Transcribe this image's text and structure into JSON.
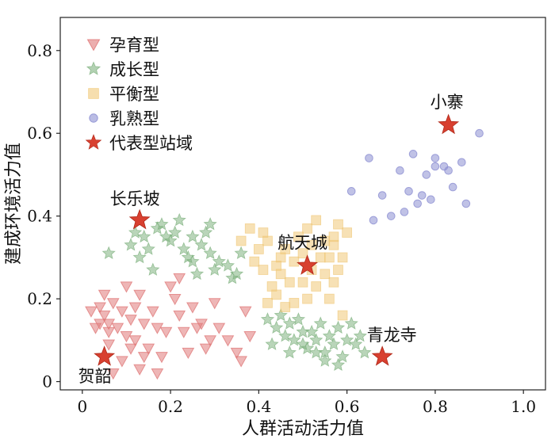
{
  "chart_data": {
    "type": "scatter",
    "xlabel": "人群活动活力值",
    "ylabel": "建成环境活力值",
    "xlim": [
      -0.05,
      1.05
    ],
    "ylim": [
      -0.02,
      0.88
    ],
    "xticks": [
      {
        "value": 0.0,
        "label": "0"
      },
      {
        "value": 0.2,
        "label": "0.2"
      },
      {
        "value": 0.4,
        "label": "0.4"
      },
      {
        "value": 0.6,
        "label": "0.6"
      },
      {
        "value": 0.8,
        "label": "0.8"
      },
      {
        "value": 1.0,
        "label": "1.0"
      }
    ],
    "yticks": [
      {
        "value": 0.0,
        "label": "0"
      },
      {
        "value": 0.2,
        "label": "0.2"
      },
      {
        "value": 0.4,
        "label": "0.4"
      },
      {
        "value": 0.6,
        "label": "0.6"
      },
      {
        "value": 0.8,
        "label": "0.8"
      }
    ],
    "grid": false,
    "legend_position": "top-left",
    "series": [
      {
        "name": "孕育型",
        "marker": "triangle-down",
        "color": "#e07a7a",
        "points": [
          [
            0.02,
            0.17
          ],
          [
            0.04,
            0.18
          ],
          [
            0.05,
            0.16
          ],
          [
            0.06,
            0.14
          ],
          [
            0.07,
            0.19
          ],
          [
            0.04,
            0.14
          ],
          [
            0.06,
            0.12
          ],
          [
            0.03,
            0.13
          ],
          [
            0.05,
            0.21
          ],
          [
            0.08,
            0.13
          ],
          [
            0.09,
            0.17
          ],
          [
            0.1,
            0.11
          ],
          [
            0.11,
            0.15
          ],
          [
            0.12,
            0.18
          ],
          [
            0.13,
            0.21
          ],
          [
            0.12,
            0.1
          ],
          [
            0.14,
            0.14
          ],
          [
            0.15,
            0.08
          ],
          [
            0.16,
            0.17
          ],
          [
            0.17,
            0.13
          ],
          [
            0.19,
            0.12
          ],
          [
            0.2,
            0.23
          ],
          [
            0.21,
            0.2
          ],
          [
            0.22,
            0.16
          ],
          [
            0.23,
            0.12
          ],
          [
            0.25,
            0.18
          ],
          [
            0.26,
            0.13
          ],
          [
            0.24,
            0.07
          ],
          [
            0.27,
            0.14
          ],
          [
            0.29,
            0.1
          ],
          [
            0.3,
            0.19
          ],
          [
            0.31,
            0.13
          ],
          [
            0.33,
            0.1
          ],
          [
            0.35,
            0.07
          ],
          [
            0.37,
            0.17
          ],
          [
            0.38,
            0.11
          ],
          [
            0.18,
            0.06
          ],
          [
            0.09,
            0.05
          ],
          [
            0.07,
            0.02
          ],
          [
            0.13,
            0.03
          ],
          [
            0.17,
            0.02
          ],
          [
            0.11,
            0.08
          ],
          [
            0.14,
            0.06
          ],
          [
            0.22,
            0.25
          ],
          [
            0.28,
            0.08
          ],
          [
            0.36,
            0.05
          ],
          [
            0.06,
            0.09
          ],
          [
            0.1,
            0.23
          ]
        ]
      },
      {
        "name": "成长型",
        "marker": "star",
        "color": "#7fb27f",
        "points": [
          [
            0.06,
            0.31
          ],
          [
            0.11,
            0.33
          ],
          [
            0.12,
            0.36
          ],
          [
            0.13,
            0.3
          ],
          [
            0.15,
            0.32
          ],
          [
            0.16,
            0.27
          ],
          [
            0.17,
            0.37
          ],
          [
            0.19,
            0.35
          ],
          [
            0.2,
            0.34
          ],
          [
            0.22,
            0.39
          ],
          [
            0.23,
            0.32
          ],
          [
            0.25,
            0.35
          ],
          [
            0.25,
            0.29
          ],
          [
            0.27,
            0.33
          ],
          [
            0.28,
            0.36
          ],
          [
            0.29,
            0.31
          ],
          [
            0.3,
            0.27
          ],
          [
            0.31,
            0.29
          ],
          [
            0.33,
            0.28
          ],
          [
            0.34,
            0.25
          ],
          [
            0.35,
            0.26
          ],
          [
            0.26,
            0.26
          ],
          [
            0.18,
            0.38
          ],
          [
            0.21,
            0.36
          ],
          [
            0.24,
            0.3
          ],
          [
            0.36,
            0.31
          ],
          [
            0.29,
            0.38
          ],
          [
            0.14,
            0.35
          ],
          [
            0.42,
            0.15
          ],
          [
            0.44,
            0.13
          ],
          [
            0.45,
            0.16
          ],
          [
            0.46,
            0.11
          ],
          [
            0.47,
            0.14
          ],
          [
            0.48,
            0.1
          ],
          [
            0.49,
            0.15
          ],
          [
            0.5,
            0.12
          ],
          [
            0.51,
            0.08
          ],
          [
            0.52,
            0.12
          ],
          [
            0.53,
            0.1
          ],
          [
            0.54,
            0.14
          ],
          [
            0.55,
            0.07
          ],
          [
            0.56,
            0.11
          ],
          [
            0.57,
            0.09
          ],
          [
            0.58,
            0.13
          ],
          [
            0.59,
            0.06
          ],
          [
            0.6,
            0.1
          ],
          [
            0.61,
            0.14
          ],
          [
            0.62,
            0.09
          ],
          [
            0.63,
            0.11
          ],
          [
            0.64,
            0.07
          ],
          [
            0.47,
            0.07
          ],
          [
            0.5,
            0.09
          ],
          [
            0.55,
            0.05
          ],
          [
            0.58,
            0.04
          ],
          [
            0.43,
            0.09
          ],
          [
            0.53,
            0.07
          ]
        ]
      },
      {
        "name": "平衡型",
        "marker": "square",
        "color": "#f0c878",
        "points": [
          [
            0.36,
            0.34
          ],
          [
            0.38,
            0.37
          ],
          [
            0.39,
            0.29
          ],
          [
            0.4,
            0.32
          ],
          [
            0.41,
            0.27
          ],
          [
            0.42,
            0.34
          ],
          [
            0.43,
            0.23
          ],
          [
            0.44,
            0.21
          ],
          [
            0.45,
            0.26
          ],
          [
            0.46,
            0.32
          ],
          [
            0.46,
            0.18
          ],
          [
            0.47,
            0.24
          ],
          [
            0.48,
            0.29
          ],
          [
            0.49,
            0.35
          ],
          [
            0.5,
            0.31
          ],
          [
            0.51,
            0.2
          ],
          [
            0.51,
            0.37
          ],
          [
            0.52,
            0.27
          ],
          [
            0.53,
            0.23
          ],
          [
            0.54,
            0.3
          ],
          [
            0.55,
            0.26
          ],
          [
            0.55,
            0.34
          ],
          [
            0.56,
            0.2
          ],
          [
            0.56,
            0.3
          ],
          [
            0.57,
            0.24
          ],
          [
            0.57,
            0.33
          ],
          [
            0.58,
            0.27
          ],
          [
            0.58,
            0.38
          ],
          [
            0.59,
            0.3
          ],
          [
            0.6,
            0.36
          ],
          [
            0.42,
            0.19
          ],
          [
            0.44,
            0.28
          ],
          [
            0.48,
            0.19
          ],
          [
            0.53,
            0.39
          ],
          [
            0.41,
            0.36
          ],
          [
            0.57,
            0.35
          ],
          [
            0.59,
            0.16
          ],
          [
            0.52,
            0.33
          ],
          [
            0.45,
            0.3
          ],
          [
            0.5,
            0.24
          ]
        ]
      },
      {
        "name": "乳熟型",
        "marker": "circle",
        "color": "#8c8fd2",
        "points": [
          [
            0.61,
            0.46
          ],
          [
            0.65,
            0.54
          ],
          [
            0.66,
            0.39
          ],
          [
            0.68,
            0.45
          ],
          [
            0.7,
            0.4
          ],
          [
            0.72,
            0.51
          ],
          [
            0.73,
            0.41
          ],
          [
            0.74,
            0.46
          ],
          [
            0.75,
            0.55
          ],
          [
            0.76,
            0.43
          ],
          [
            0.77,
            0.45
          ],
          [
            0.78,
            0.5
          ],
          [
            0.79,
            0.44
          ],
          [
            0.8,
            0.52
          ],
          [
            0.82,
            0.52
          ],
          [
            0.83,
            0.51
          ],
          [
            0.84,
            0.47
          ],
          [
            0.86,
            0.53
          ],
          [
            0.87,
            0.43
          ],
          [
            0.9,
            0.6
          ],
          [
            0.8,
            0.54
          ]
        ]
      }
    ],
    "representative": {
      "name": "代表型站域",
      "color": "#d84030",
      "points": [
        {
          "label": "小寨",
          "x": 0.83,
          "y": 0.62
        },
        {
          "label": "长乐坡",
          "x": 0.13,
          "y": 0.39
        },
        {
          "label": "航天城",
          "x": 0.51,
          "y": 0.28
        },
        {
          "label": "青龙寺",
          "x": 0.68,
          "y": 0.06
        },
        {
          "label": "贺韶",
          "x": 0.05,
          "y": 0.06
        }
      ]
    }
  }
}
